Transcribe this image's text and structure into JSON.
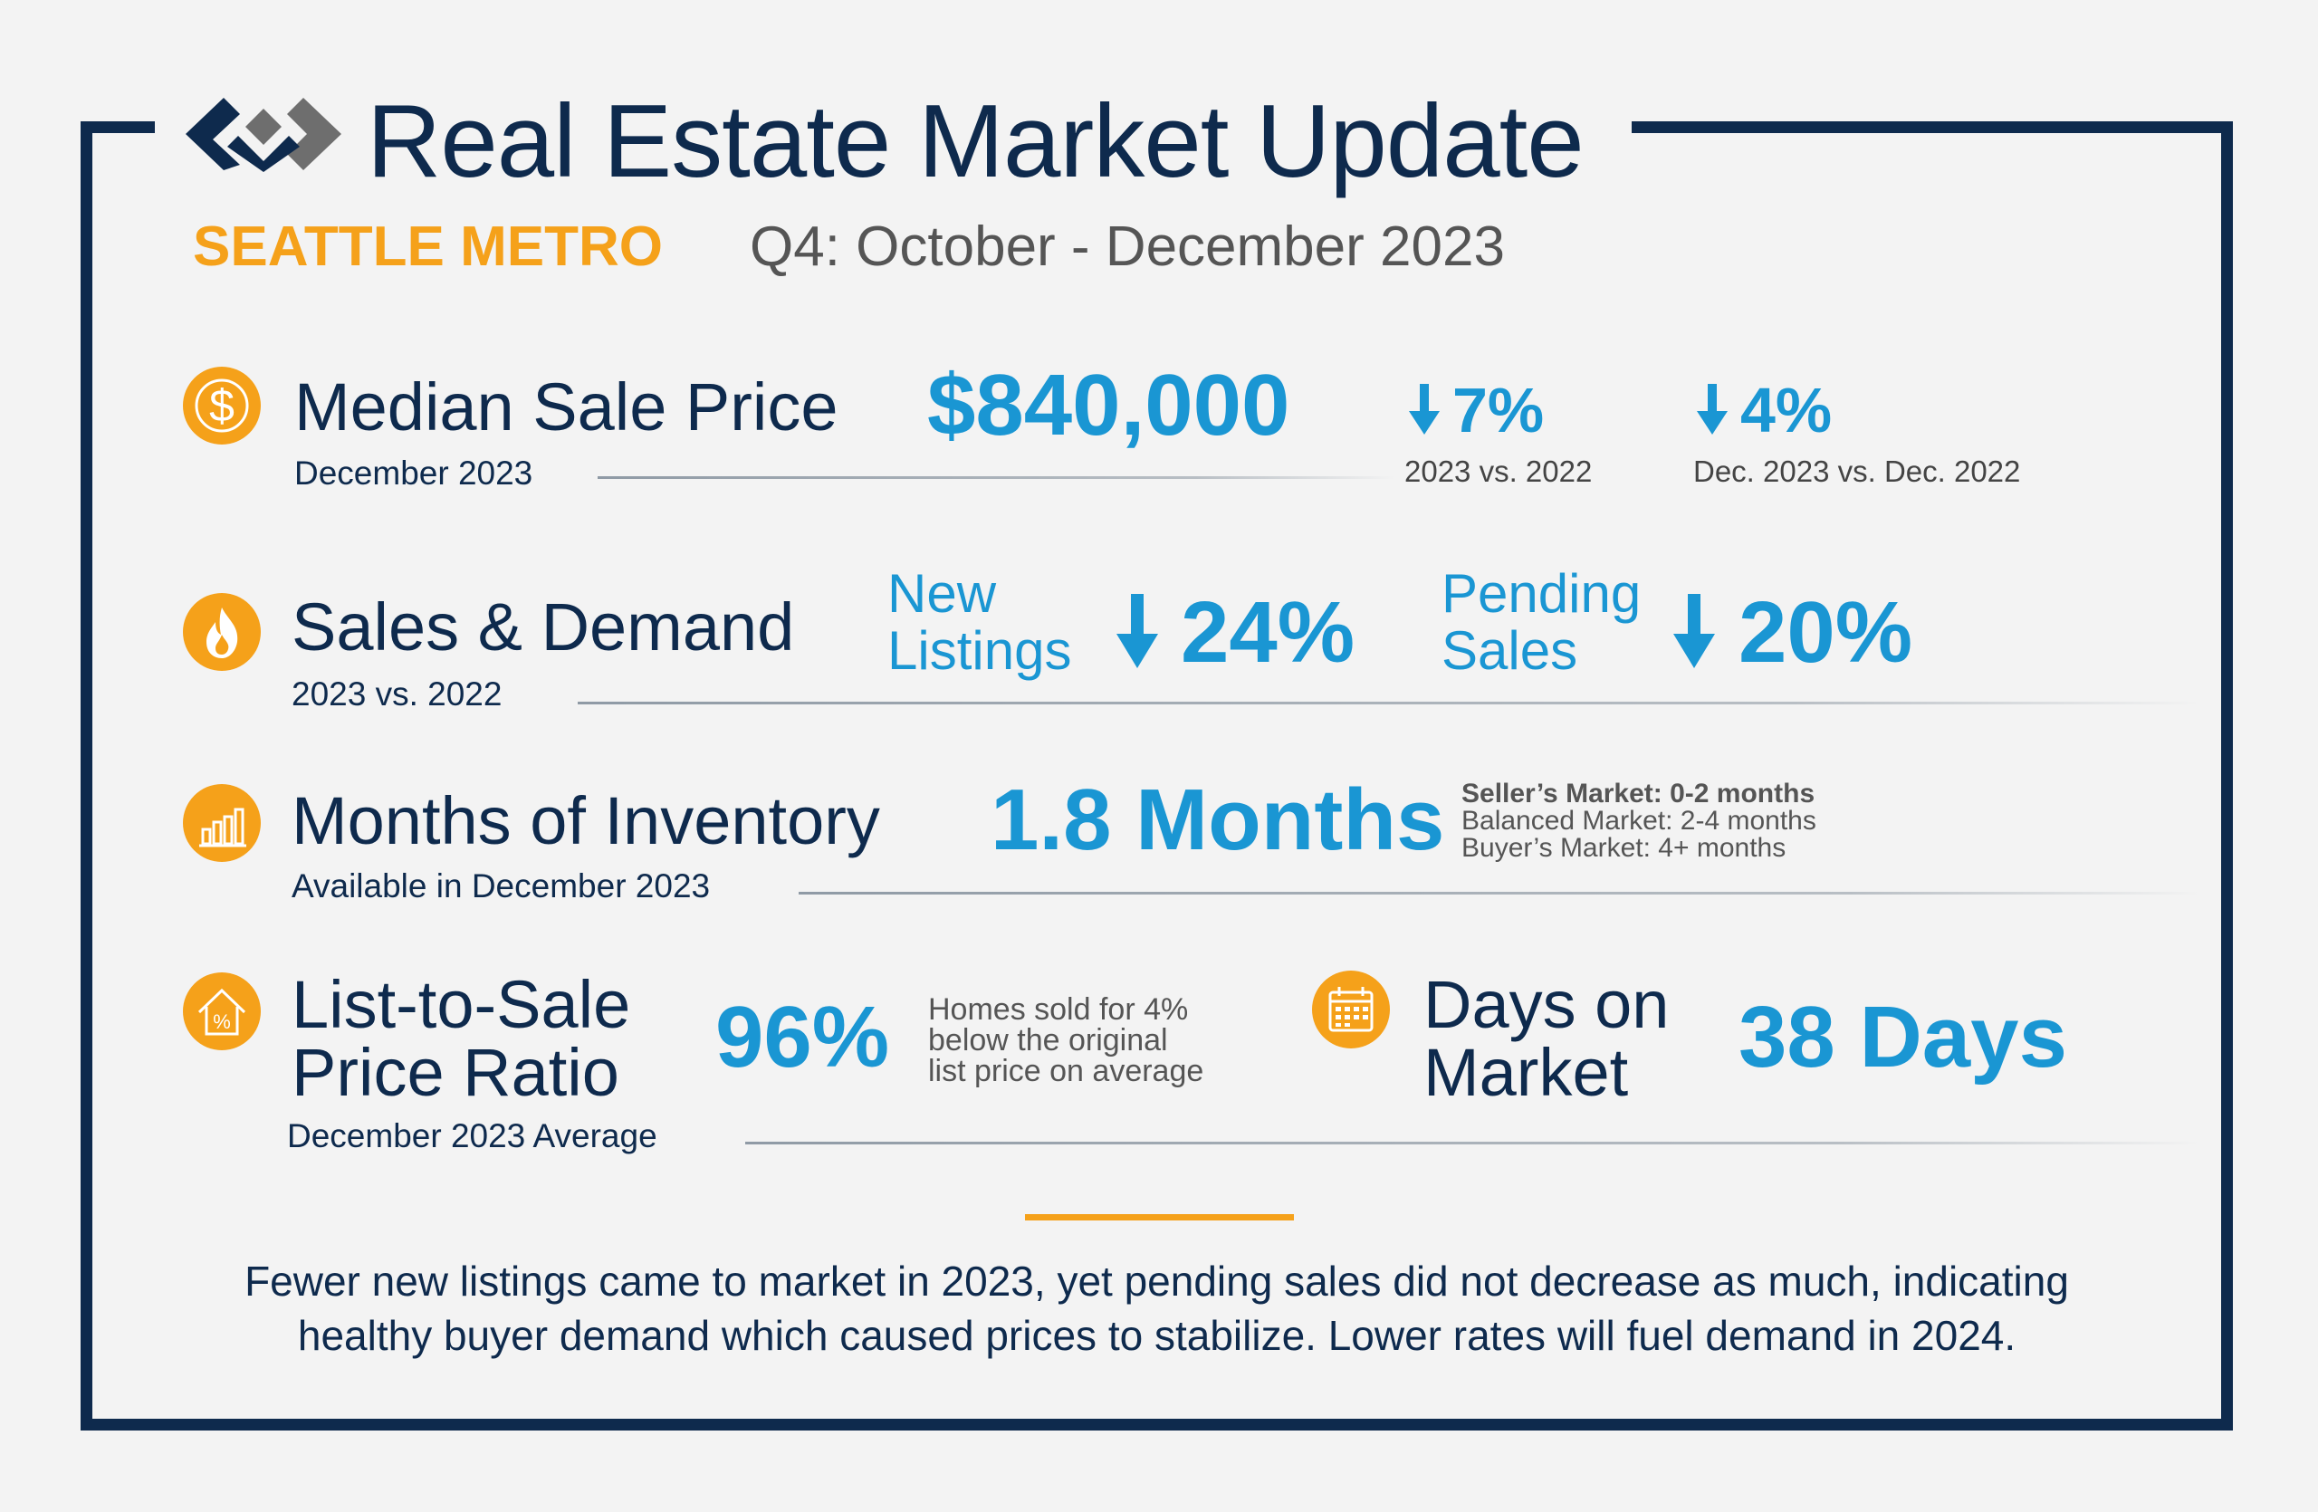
{
  "header": {
    "title": "Real Estate Market Update",
    "region": "SEATTLE METRO",
    "period": "Q4: October - December 2023",
    "logo_icon": "windermere-logo-icon"
  },
  "median_price": {
    "icon": "dollar-icon",
    "label": "Median Sale Price",
    "sublabel": "December 2023",
    "value": "$840,000",
    "change1": {
      "value": "7%",
      "direction": "down",
      "caption": "2023 vs. 2022"
    },
    "change2": {
      "value": "4%",
      "direction": "down",
      "caption": "Dec. 2023 vs. Dec. 2022"
    }
  },
  "sales_demand": {
    "icon": "fire-icon",
    "label": "Sales & Demand",
    "sublabel": "2023 vs. 2022",
    "new_listings": {
      "label_line1": "New",
      "label_line2": "Listings",
      "value": "24%",
      "direction": "down"
    },
    "pending_sales": {
      "label_line1": "Pending",
      "label_line2": "Sales",
      "value": "20%",
      "direction": "down"
    }
  },
  "inventory": {
    "icon": "bar-chart-icon",
    "label": "Months of Inventory",
    "sublabel": "Available in December 2023",
    "value": "1.8 Months",
    "market_key": [
      "Seller’s Market: 0-2 months",
      "Balanced Market: 2-4 months",
      "Buyer’s Market: 4+ months"
    ]
  },
  "list_to_sale": {
    "icon": "house-percent-icon",
    "label_line1": "List-to-Sale",
    "label_line2": "Price Ratio",
    "sublabel": "December 2023 Average",
    "value": "96%",
    "note": [
      "Homes sold for 4%",
      "below the original",
      "list price on average"
    ]
  },
  "days_on_market": {
    "icon": "calendar-icon",
    "label_line1": "Days on",
    "label_line2": "Market",
    "value": "38 Days"
  },
  "footer": {
    "line1": "Fewer new listings came to market in 2023, yet pending sales did not decrease as much, indicating",
    "line2": "healthy buyer demand which caused prices to stabilize. Lower rates will fuel demand in 2024."
  },
  "colors": {
    "navy": "#0e2a4d",
    "blue": "#1a96d3",
    "orange": "#f5a11a",
    "grey": "#555555",
    "background": "#f3f3f3"
  }
}
